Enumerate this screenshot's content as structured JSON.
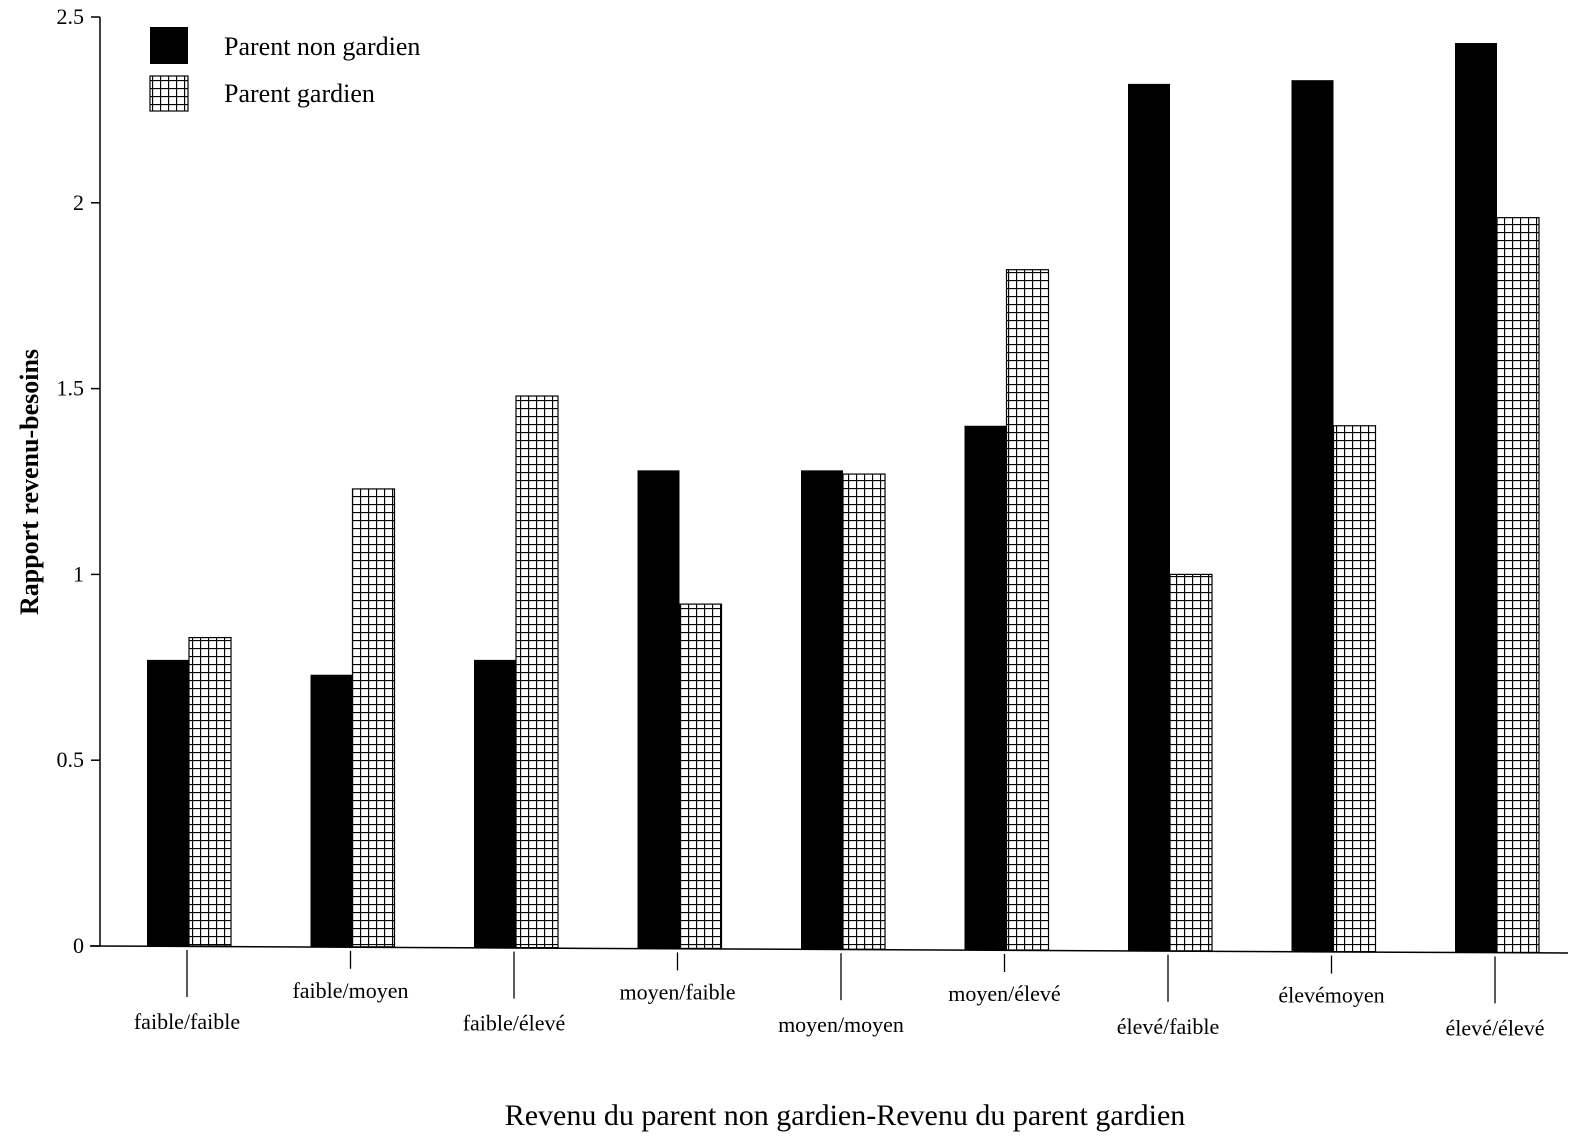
{
  "chart_data": {
    "type": "bar",
    "ylabel": "Rapport revenu-besoins",
    "xlabel": "Revenu du parent non gardien-Revenu du parent gardien",
    "ylim": [
      0,
      2.5
    ],
    "yticks": [
      "0",
      "0.5",
      "1",
      "1.5",
      "2",
      "2.5"
    ],
    "yticks_values": [
      0,
      0.5,
      1,
      1.5,
      2,
      2.5
    ],
    "categories": [
      "faible/faible",
      "faible/moyen",
      "faible/élevé",
      "moyen/faible",
      "moyen/moyen",
      "moyen/élevé",
      "élevé/faible",
      "élevémoyen",
      "élevé/élevé"
    ],
    "series": [
      {
        "name": "Parent non gardien",
        "fill": "solid",
        "color": "#000000",
        "values": [
          0.77,
          0.73,
          0.77,
          1.28,
          1.28,
          1.4,
          2.32,
          2.33,
          2.43
        ]
      },
      {
        "name": "Parent gardien",
        "fill": "grid",
        "color": "#000000",
        "values": [
          0.83,
          1.23,
          1.48,
          0.92,
          1.27,
          1.82,
          1.0,
          1.4,
          1.96
        ]
      }
    ],
    "legend_position": "top-left",
    "grid": false
  }
}
